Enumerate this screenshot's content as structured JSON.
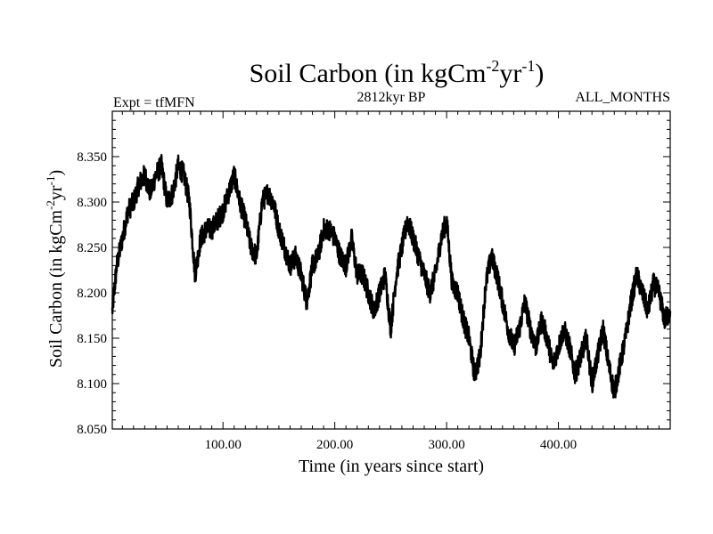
{
  "chart_data": {
    "type": "line",
    "title": "Soil Carbon (in kgCm",
    "title_sup1": "-2",
    "title_mid": "yr",
    "title_sup2": "-1",
    "title_end": ")",
    "left_label": "Expt = tfMFN",
    "center_label": "2812kyr BP",
    "right_label": "ALL_MONTHS",
    "xlabel": "Time (in years since start)",
    "ylabel": "Soil Carbon (in kgCm",
    "ylabel_sup1": "-2",
    "ylabel_mid": "yr",
    "ylabel_sup2": "-1",
    "ylabel_end": ")",
    "xlim": [
      1,
      500
    ],
    "ylim": [
      8.05,
      8.4
    ],
    "xticks": [
      100,
      200,
      300,
      400
    ],
    "xtick_labels": [
      "100.00",
      "200.00",
      "300.00",
      "400.00"
    ],
    "yticks": [
      8.05,
      8.1,
      8.15,
      8.2,
      8.25,
      8.3,
      8.35
    ],
    "ytick_labels": [
      "8.050",
      "8.100",
      "8.150",
      "8.200",
      "8.250",
      "8.300",
      "8.350"
    ],
    "grid": false,
    "series": [
      {
        "name": "Soil Carbon",
        "color": "#000000",
        "x": [
          1,
          5,
          10,
          15,
          20,
          25,
          30,
          35,
          40,
          45,
          50,
          55,
          60,
          65,
          70,
          75,
          80,
          85,
          90,
          95,
          100,
          105,
          110,
          115,
          120,
          125,
          130,
          135,
          140,
          145,
          150,
          155,
          160,
          165,
          170,
          175,
          180,
          185,
          190,
          195,
          200,
          205,
          210,
          215,
          220,
          225,
          230,
          235,
          240,
          245,
          250,
          255,
          260,
          265,
          270,
          275,
          280,
          285,
          290,
          295,
          300,
          305,
          310,
          315,
          320,
          325,
          330,
          335,
          340,
          345,
          350,
          355,
          360,
          365,
          370,
          375,
          380,
          385,
          390,
          395,
          400,
          405,
          410,
          415,
          420,
          425,
          430,
          435,
          440,
          445,
          450,
          455,
          460,
          465,
          470,
          475,
          480,
          485,
          490,
          495,
          500
        ],
        "y": [
          8.18,
          8.23,
          8.26,
          8.29,
          8.3,
          8.32,
          8.33,
          8.31,
          8.33,
          8.34,
          8.3,
          8.31,
          8.34,
          8.33,
          8.3,
          8.22,
          8.26,
          8.27,
          8.27,
          8.28,
          8.29,
          8.31,
          8.33,
          8.3,
          8.28,
          8.25,
          8.24,
          8.3,
          8.31,
          8.3,
          8.27,
          8.25,
          8.23,
          8.24,
          8.22,
          8.19,
          8.23,
          8.24,
          8.27,
          8.27,
          8.26,
          8.24,
          8.23,
          8.26,
          8.22,
          8.22,
          8.2,
          8.18,
          8.2,
          8.22,
          8.16,
          8.22,
          8.25,
          8.28,
          8.26,
          8.24,
          8.22,
          8.2,
          8.22,
          8.26,
          8.28,
          8.21,
          8.2,
          8.17,
          8.15,
          8.11,
          8.13,
          8.21,
          8.24,
          8.22,
          8.19,
          8.16,
          8.14,
          8.16,
          8.19,
          8.16,
          8.14,
          8.17,
          8.15,
          8.12,
          8.14,
          8.16,
          8.14,
          8.11,
          8.13,
          8.15,
          8.1,
          8.13,
          8.16,
          8.12,
          8.09,
          8.12,
          8.15,
          8.19,
          8.22,
          8.2,
          8.18,
          8.21,
          8.2,
          8.17,
          8.18
        ]
      }
    ]
  }
}
